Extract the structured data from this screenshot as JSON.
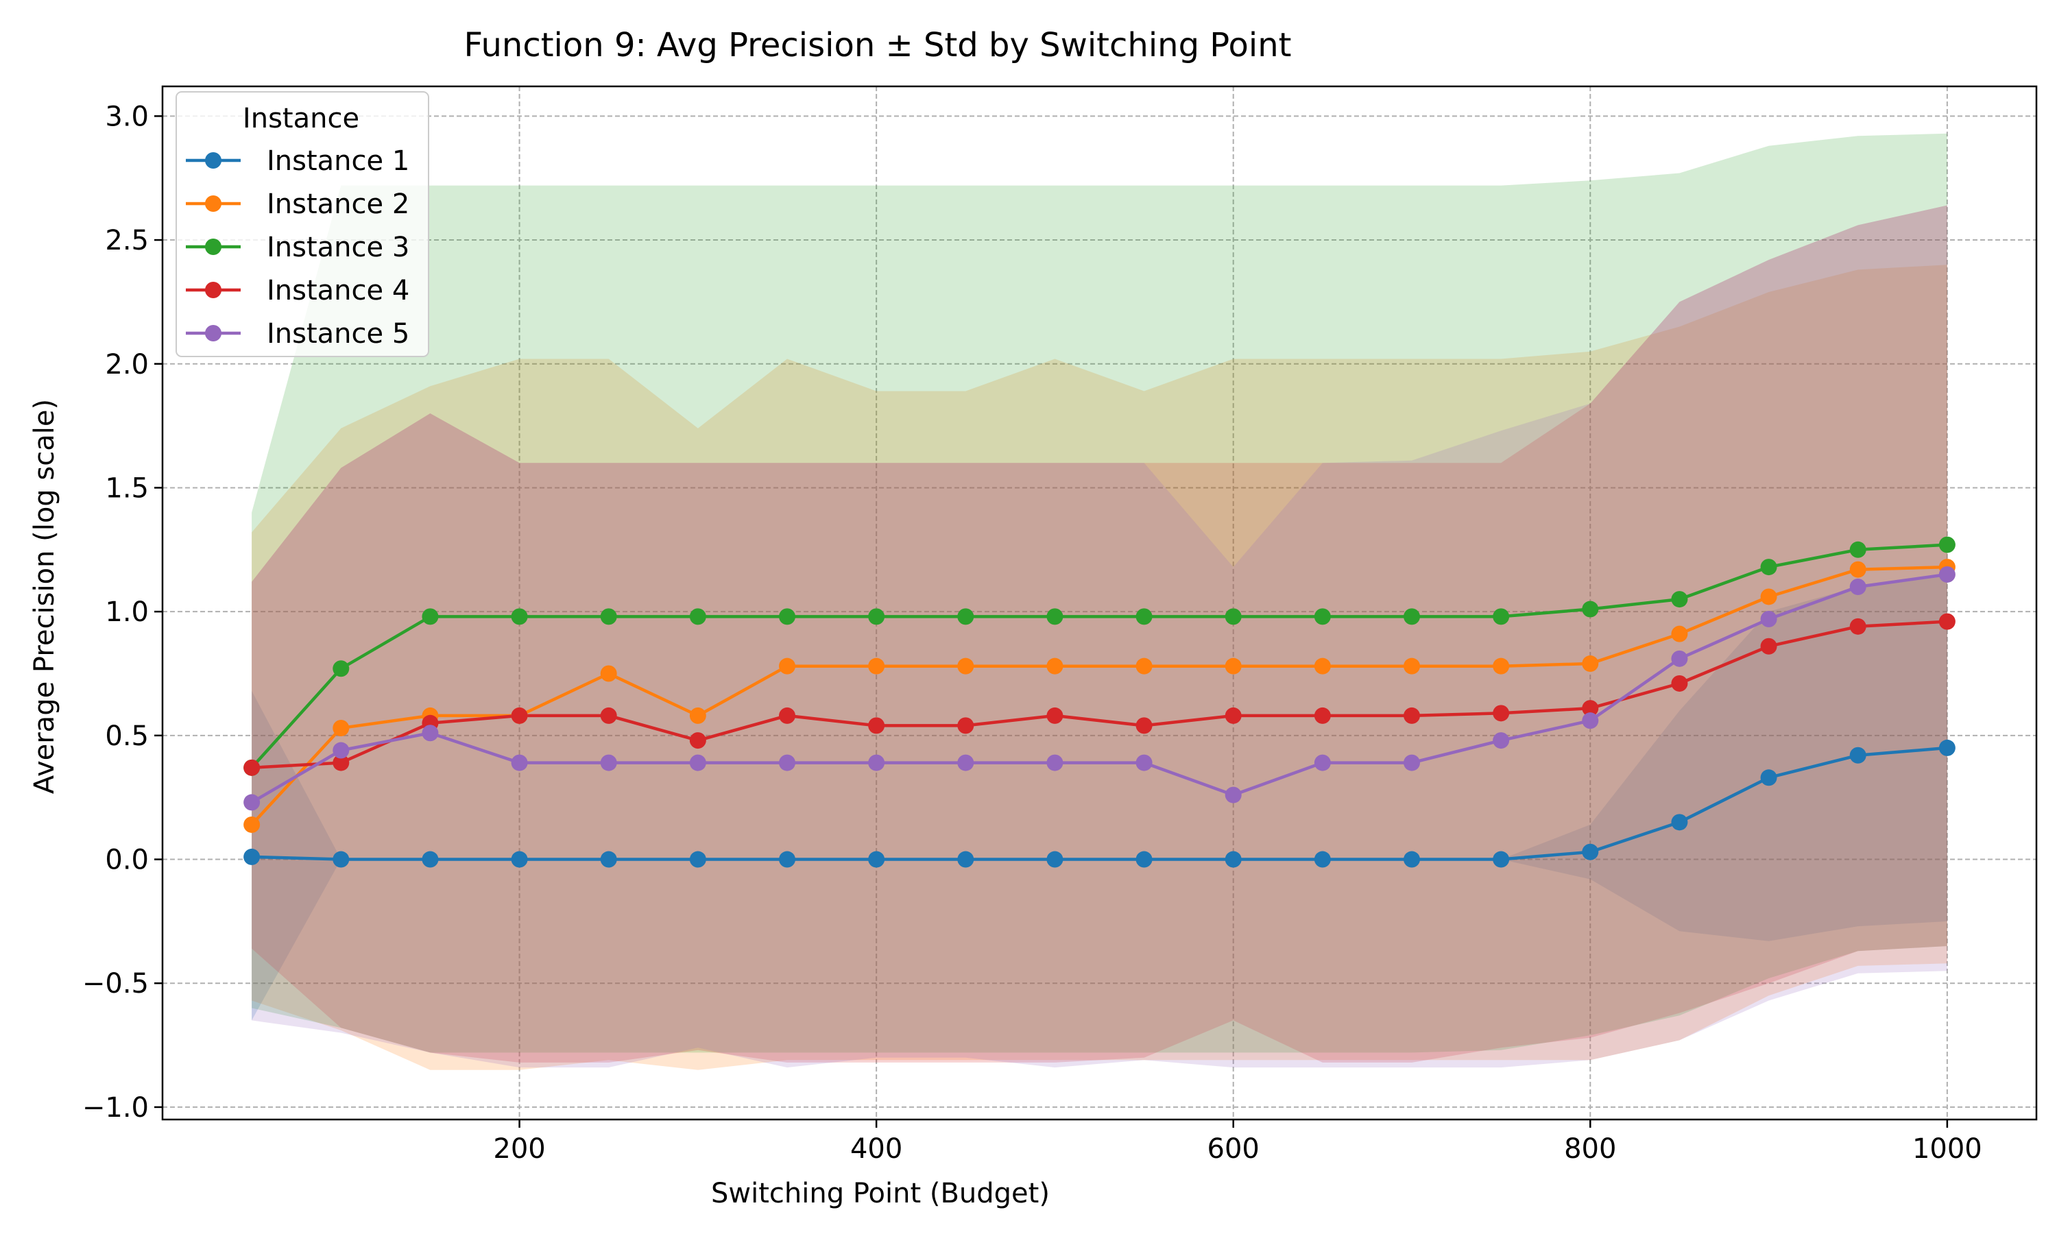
{
  "chart_data": {
    "type": "line",
    "title": "Function 9: Avg Precision ± Std by Switching Point",
    "xlabel": "Switching Point (Budget)",
    "ylabel": "Average Precision (log scale)",
    "xlim": [
      0,
      1050
    ],
    "ylim": [
      -1.05,
      3.12
    ],
    "xticks": [
      200,
      400,
      600,
      800,
      1000
    ],
    "yticks": [
      -1.0,
      -0.5,
      0.0,
      0.5,
      1.0,
      1.5,
      2.0,
      2.5,
      3.0
    ],
    "xtick_labels": [
      "200",
      "400",
      "600",
      "800",
      "1000"
    ],
    "ytick_labels": [
      "−1.0",
      "−0.5",
      "0.0",
      "0.5",
      "1.0",
      "1.5",
      "2.0",
      "2.5",
      "3.0"
    ],
    "grid": true,
    "legend_title": "Instance",
    "legend_position": "top-left",
    "x": [
      50,
      100,
      150,
      200,
      250,
      300,
      350,
      400,
      450,
      500,
      550,
      600,
      650,
      700,
      750,
      800,
      850,
      900,
      950,
      1000
    ],
    "series": [
      {
        "name": "Instance 1",
        "color": "#1f77b4",
        "values": [
          0.01,
          0.0,
          0.0,
          0.0,
          0.0,
          0.0,
          0.0,
          0.0,
          0.0,
          0.0,
          0.0,
          0.0,
          0.0,
          0.0,
          0.0,
          0.03,
          0.15,
          0.33,
          0.42,
          0.45
        ],
        "upper": [
          0.68,
          0.0,
          0.0,
          0.0,
          0.0,
          0.0,
          0.0,
          0.0,
          0.0,
          0.0,
          0.0,
          0.0,
          0.0,
          0.0,
          0.0,
          0.14,
          0.6,
          1.0,
          1.1,
          1.15
        ],
        "lower": [
          -0.65,
          0.0,
          0.0,
          0.0,
          0.0,
          0.0,
          0.0,
          0.0,
          0.0,
          0.0,
          0.0,
          0.0,
          0.0,
          0.0,
          0.0,
          -0.08,
          -0.29,
          -0.33,
          -0.27,
          -0.25
        ]
      },
      {
        "name": "Instance 2",
        "color": "#ff7f0e",
        "values": [
          0.14,
          0.53,
          0.58,
          0.58,
          0.75,
          0.58,
          0.78,
          0.78,
          0.78,
          0.78,
          0.78,
          0.78,
          0.78,
          0.78,
          0.78,
          0.79,
          0.91,
          1.06,
          1.17,
          1.18
        ],
        "upper": [
          1.32,
          1.74,
          1.91,
          2.02,
          2.02,
          1.74,
          2.02,
          1.89,
          1.89,
          2.02,
          1.89,
          2.02,
          2.02,
          2.02,
          2.02,
          2.05,
          2.15,
          2.29,
          2.38,
          2.4
        ],
        "lower": [
          -0.57,
          -0.69,
          -0.85,
          -0.85,
          -0.81,
          -0.85,
          -0.81,
          -0.81,
          -0.81,
          -0.81,
          -0.81,
          -0.81,
          -0.81,
          -0.81,
          -0.81,
          -0.81,
          -0.73,
          -0.55,
          -0.43,
          -0.42
        ]
      },
      {
        "name": "Instance 3",
        "color": "#2ca02c",
        "values": [
          0.37,
          0.77,
          0.98,
          0.98,
          0.98,
          0.98,
          0.98,
          0.98,
          0.98,
          0.98,
          0.98,
          0.98,
          0.98,
          0.98,
          0.98,
          1.01,
          1.05,
          1.18,
          1.25,
          1.27
        ],
        "upper": [
          1.4,
          2.72,
          2.72,
          2.72,
          2.72,
          2.72,
          2.72,
          2.72,
          2.72,
          2.72,
          2.72,
          2.72,
          2.72,
          2.72,
          2.72,
          2.74,
          2.77,
          2.88,
          2.92,
          2.93
        ],
        "lower": [
          -0.6,
          -0.68,
          -0.78,
          -0.78,
          -0.78,
          -0.78,
          -0.78,
          -0.78,
          -0.78,
          -0.78,
          -0.78,
          -0.78,
          -0.78,
          -0.78,
          -0.77,
          -0.71,
          -0.63,
          -0.48,
          -0.37,
          -0.35
        ]
      },
      {
        "name": "Instance 4",
        "color": "#d62728",
        "values": [
          0.37,
          0.39,
          0.55,
          0.58,
          0.58,
          0.48,
          0.58,
          0.54,
          0.54,
          0.58,
          0.54,
          0.58,
          0.58,
          0.58,
          0.59,
          0.61,
          0.71,
          0.86,
          0.94,
          0.96
        ],
        "upper": [
          1.12,
          1.58,
          1.8,
          1.6,
          1.6,
          1.6,
          1.6,
          1.6,
          1.6,
          1.6,
          1.6,
          1.6,
          1.6,
          1.6,
          1.6,
          1.84,
          2.25,
          2.42,
          2.56,
          2.64
        ],
        "lower": [
          -0.36,
          -0.68,
          -0.78,
          -0.82,
          -0.82,
          -0.77,
          -0.82,
          -0.82,
          -0.82,
          -0.82,
          -0.8,
          -0.65,
          -0.82,
          -0.82,
          -0.76,
          -0.72,
          -0.62,
          -0.5,
          -0.37,
          -0.35
        ]
      },
      {
        "name": "Instance 5",
        "color": "#9467bd",
        "values": [
          0.23,
          0.44,
          0.51,
          0.39,
          0.39,
          0.39,
          0.39,
          0.39,
          0.39,
          0.39,
          0.39,
          0.26,
          0.39,
          0.39,
          0.48,
          0.56,
          0.81,
          0.97,
          1.1,
          1.15
        ],
        "upper": [
          1.12,
          1.58,
          1.8,
          1.6,
          1.6,
          1.6,
          1.6,
          1.6,
          1.6,
          1.6,
          1.6,
          1.18,
          1.6,
          1.61,
          1.73,
          1.84,
          2.25,
          2.42,
          2.56,
          2.64
        ],
        "lower": [
          -0.65,
          -0.7,
          -0.78,
          -0.84,
          -0.84,
          -0.76,
          -0.84,
          -0.8,
          -0.8,
          -0.84,
          -0.81,
          -0.84,
          -0.84,
          -0.84,
          -0.84,
          -0.81,
          -0.73,
          -0.57,
          -0.46,
          -0.45
        ]
      }
    ]
  }
}
